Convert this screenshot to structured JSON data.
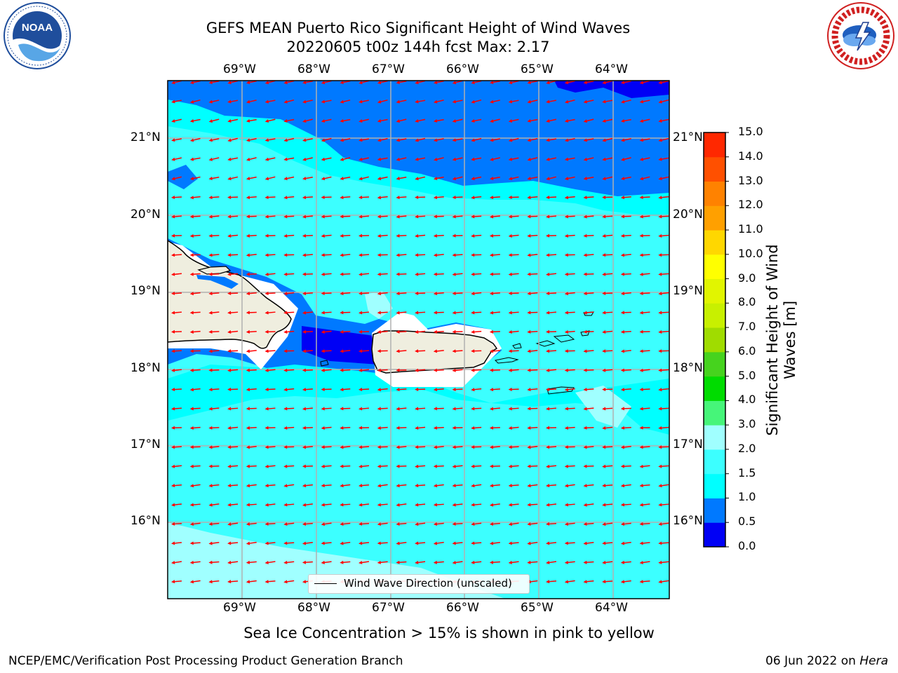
{
  "header": {
    "title_line1": "GEFS MEAN Puerto Rico Significant Height of Wind Waves",
    "title_line2": "20220605 t00z 144h fcst   Max: 2.17"
  },
  "logos": {
    "left": {
      "name": "NOAA",
      "text": "NOAA",
      "ring_text": "NATIONAL OCEANIC AND ATMOSPHERIC ADMINISTRATION · U.S. DEPARTMENT OF COMMERCE"
    },
    "right": {
      "name": "National Weather Service",
      "ring_text": "NATIONAL WEATHER SERVICE"
    }
  },
  "map": {
    "lon_labels": [
      "69°W",
      "68°W",
      "67°W",
      "66°W",
      "65°W",
      "64°W"
    ],
    "lat_labels": [
      "21°N",
      "20°N",
      "19°N",
      "18°N",
      "17°N",
      "16°N"
    ],
    "legend_label": "Wind Wave Direction (unscaled)",
    "land_color": "#efeedf",
    "arrow_color": "#ff0000"
  },
  "colorbar": {
    "label_line1": "Significant Height of Wind",
    "label_line2": "Waves [m]",
    "ticks": [
      "0.0",
      "0.5",
      "1.0",
      "1.5",
      "2.0",
      "3.0",
      "4.0",
      "5.0",
      "6.0",
      "7.0",
      "8.0",
      "9.0",
      "10.0",
      "11.0",
      "12.0",
      "13.0",
      "14.0",
      "15.0"
    ],
    "colors": [
      "#0000f5",
      "#0079ff",
      "#00ffff",
      "#3cffff",
      "#a0ffff",
      "#46f579",
      "#00dc00",
      "#46d31e",
      "#a0dc00",
      "#c8f000",
      "#e1f500",
      "#ffff00",
      "#ffd700",
      "#ffa000",
      "#ff8200",
      "#ff5000",
      "#ff2800",
      "#ff0000"
    ]
  },
  "footer": {
    "ice_note": "Sea Ice Concentration > 15% is shown in pink to yellow",
    "branch": "NCEP/EMC/Verification Post Processing Product Generation Branch",
    "date": "06 Jun 2022 on ",
    "host": "Hera"
  }
}
